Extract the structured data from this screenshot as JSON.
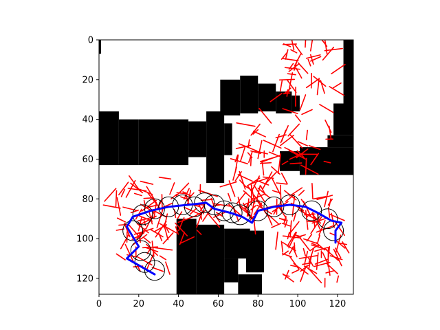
{
  "chart_data": {
    "type": "scatter",
    "title": "",
    "xlabel": "",
    "ylabel": "",
    "xlim": [
      0,
      128
    ],
    "ylim": [
      128,
      0
    ],
    "x_ticks": [
      0,
      20,
      40,
      60,
      80,
      100,
      120
    ],
    "y_ticks": [
      0,
      20,
      40,
      60,
      80,
      100,
      120
    ],
    "grid": false,
    "legend": "none",
    "colors": {
      "obstacle": "#000000",
      "free": "#ffffff",
      "tree": "#ff0000",
      "path": "#0000ff",
      "circle": "#000000"
    },
    "obstacles": [
      [
        0,
        0,
        1,
        7
      ],
      [
        123,
        0,
        128,
        32
      ],
      [
        118,
        32,
        128,
        48
      ],
      [
        0,
        36,
        10,
        63
      ],
      [
        10,
        40,
        20,
        63
      ],
      [
        20,
        40,
        45,
        63
      ],
      [
        45,
        41,
        54,
        59
      ],
      [
        54,
        36,
        63,
        72
      ],
      [
        63,
        42,
        67,
        58
      ],
      [
        61,
        20,
        71,
        38
      ],
      [
        71,
        18,
        80,
        37
      ],
      [
        80,
        22,
        89,
        36
      ],
      [
        89,
        26,
        97,
        37
      ],
      [
        97,
        28,
        101,
        36
      ],
      [
        91,
        56,
        101,
        66
      ],
      [
        101,
        54,
        128,
        68
      ],
      [
        115,
        48,
        128,
        54
      ],
      [
        39,
        90,
        49,
        128
      ],
      [
        49,
        93,
        63,
        128
      ],
      [
        63,
        95,
        76,
        110
      ],
      [
        63,
        110,
        70,
        122
      ],
      [
        70,
        118,
        82,
        128
      ],
      [
        74,
        96,
        83,
        117
      ]
    ],
    "circles": [
      {
        "x": 28,
        "y": 116,
        "r": 5
      },
      {
        "x": 23,
        "y": 112,
        "r": 5
      },
      {
        "x": 21,
        "y": 106,
        "r": 5
      },
      {
        "x": 17,
        "y": 96,
        "r": 5
      },
      {
        "x": 22,
        "y": 88,
        "r": 5
      },
      {
        "x": 28,
        "y": 85,
        "r": 5
      },
      {
        "x": 35,
        "y": 84,
        "r": 5
      },
      {
        "x": 42,
        "y": 83,
        "r": 5
      },
      {
        "x": 48,
        "y": 84,
        "r": 5
      },
      {
        "x": 53,
        "y": 82,
        "r": 5
      },
      {
        "x": 58,
        "y": 83,
        "r": 5
      },
      {
        "x": 63,
        "y": 86,
        "r": 5
      },
      {
        "x": 67,
        "y": 87,
        "r": 5
      },
      {
        "x": 71,
        "y": 88,
        "r": 5
      },
      {
        "x": 80,
        "y": 86,
        "r": 5
      },
      {
        "x": 88,
        "y": 84,
        "r": 5
      },
      {
        "x": 96,
        "y": 83,
        "r": 5
      },
      {
        "x": 107,
        "y": 86,
        "r": 5
      },
      {
        "x": 115,
        "y": 90,
        "r": 5
      },
      {
        "x": 118,
        "y": 96,
        "r": 5
      }
    ],
    "path": [
      [
        28,
        118
      ],
      [
        14,
        110
      ],
      [
        20,
        104
      ],
      [
        14,
        94
      ],
      [
        17,
        89
      ],
      [
        26,
        86
      ],
      [
        35,
        84
      ],
      [
        45,
        83
      ],
      [
        54,
        82
      ],
      [
        58,
        85
      ],
      [
        66,
        87
      ],
      [
        72,
        89
      ],
      [
        77,
        92
      ],
      [
        80,
        86
      ],
      [
        88,
        84
      ],
      [
        96,
        83
      ],
      [
        104,
        84
      ],
      [
        110,
        87
      ],
      [
        117,
        91
      ],
      [
        122,
        92
      ],
      [
        119,
        96
      ],
      [
        119,
        102
      ]
    ],
    "tree_clusters": [
      {
        "cx": 105,
        "cy": 20,
        "rx": 14,
        "ry": 18,
        "count": 48,
        "seed": 11
      },
      {
        "cx": 95,
        "cy": 52,
        "rx": 22,
        "ry": 12,
        "count": 42,
        "seed": 23
      },
      {
        "cx": 82,
        "cy": 70,
        "rx": 14,
        "ry": 14,
        "count": 44,
        "seed": 37
      },
      {
        "cx": 30,
        "cy": 84,
        "rx": 22,
        "ry": 16,
        "count": 70,
        "seed": 41
      },
      {
        "cx": 25,
        "cy": 104,
        "rx": 12,
        "ry": 14,
        "count": 34,
        "seed": 53
      },
      {
        "cx": 65,
        "cy": 85,
        "rx": 15,
        "ry": 5,
        "count": 28,
        "seed": 67
      },
      {
        "cx": 100,
        "cy": 88,
        "rx": 18,
        "ry": 10,
        "count": 50,
        "seed": 71
      },
      {
        "cx": 108,
        "cy": 108,
        "rx": 16,
        "ry": 12,
        "count": 60,
        "seed": 83
      }
    ]
  }
}
